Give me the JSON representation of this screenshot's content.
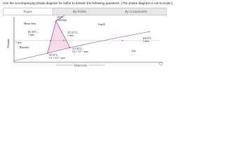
{
  "instructions": "Use the accompanying phase diagram for sulfur to answer the following questions. (The phase diagram is not to scale.)",
  "tabs": [
    "Figure",
    "By Points",
    "By Components"
  ],
  "diagram": {
    "points": {
      "top": [
        "153°C,",
        "1420 atm"
      ],
      "rm_1atm": [
        "95.39°C,",
        "1 atm"
      ],
      "ml_1atm": [
        "115.21°C,",
        "1 atm"
      ],
      "boil": [
        "444.6°C,",
        "1 atm"
      ],
      "triple_mlg": [
        "115.18°C,",
        "3.2 × 10⁻⁵ atm"
      ],
      "triple_rmg": [
        "95.31°C,",
        "5.1 × 10⁻⁶ atm"
      ]
    },
    "regions": {
      "monoclinic": "Monoclinic",
      "liquid": "Liquid",
      "rhombic": "Rhombic",
      "gas": "Gas"
    },
    "one_atm": "1 atm",
    "x_label": "Temperature",
    "y_label": "Pressure"
  }
}
